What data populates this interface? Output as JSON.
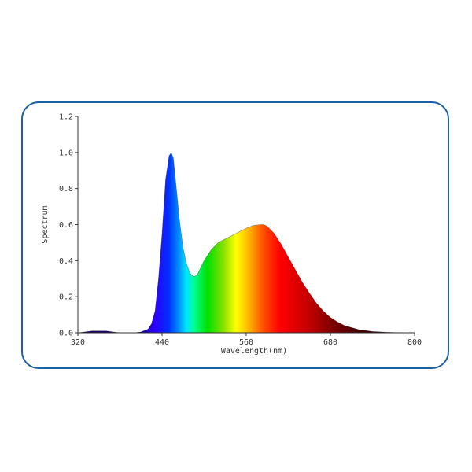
{
  "chart_data": {
    "type": "area",
    "xlabel": "Wavelength(nm)",
    "ylabel": "Spectrum",
    "xlim": [
      320,
      800
    ],
    "ylim": [
      0,
      1.2
    ],
    "x_ticks": [
      "320",
      "440",
      "560",
      "680",
      "800"
    ],
    "y_ticks": [
      "0.0",
      "0.2",
      "0.4",
      "0.6",
      "0.8",
      "1.0",
      "1.2"
    ],
    "grid": false,
    "fill": "visible-spectrum-gradient",
    "axis_color": "#333333",
    "frame_color": "#1f5fa3",
    "x": [
      320,
      340,
      360,
      380,
      400,
      410,
      420,
      425,
      430,
      435,
      440,
      445,
      450,
      453,
      456,
      460,
      465,
      470,
      475,
      480,
      485,
      490,
      495,
      500,
      510,
      520,
      530,
      540,
      550,
      560,
      570,
      580,
      585,
      590,
      600,
      610,
      620,
      630,
      640,
      650,
      660,
      670,
      680,
      690,
      700,
      720,
      740,
      760,
      780,
      800
    ],
    "y": [
      0.0,
      0.01,
      0.01,
      0.0,
      0.0,
      0.005,
      0.02,
      0.05,
      0.12,
      0.3,
      0.55,
      0.85,
      0.98,
      1.0,
      0.97,
      0.82,
      0.62,
      0.47,
      0.38,
      0.33,
      0.31,
      0.32,
      0.36,
      0.4,
      0.46,
      0.5,
      0.52,
      0.54,
      0.56,
      0.58,
      0.595,
      0.6,
      0.6,
      0.59,
      0.55,
      0.49,
      0.42,
      0.35,
      0.28,
      0.22,
      0.165,
      0.12,
      0.085,
      0.06,
      0.04,
      0.018,
      0.007,
      0.003,
      0.001,
      0.0
    ]
  }
}
